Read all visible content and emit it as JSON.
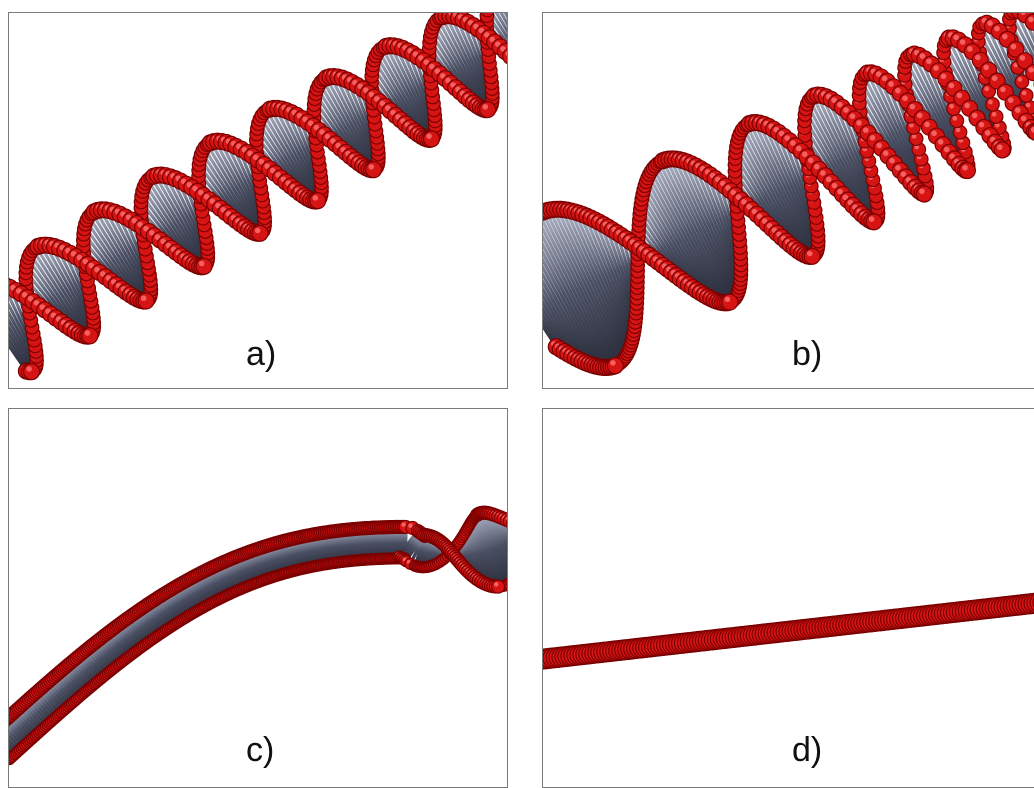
{
  "panels": [
    {
      "label": "a)"
    },
    {
      "label": "b)"
    },
    {
      "label": "c)"
    },
    {
      "label": "d)"
    }
  ],
  "colors": {
    "strand": "#d71414",
    "strand_dark": "#7a0000",
    "strand_highlight": "#ff7a7a",
    "rung": "#4a4f63",
    "rung_light": "#aeb3c6",
    "border": "#7a7a7a"
  },
  "icons": [
    "dna-helix-image"
  ]
}
